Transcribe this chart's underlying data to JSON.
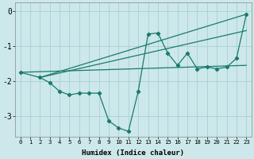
{
  "background_color": "#cce8ea",
  "grid_color": "#aad0d3",
  "line_color": "#1a7a6e",
  "xlim": [
    -0.5,
    23.5
  ],
  "ylim": [
    -3.6,
    0.25
  ],
  "xlabel": "Humidex (Indice chaleur)",
  "yticks": [
    0,
    -1,
    -2,
    -3
  ],
  "xtick_labels": [
    "0",
    "1",
    "2",
    "3",
    "4",
    "5",
    "6",
    "7",
    "8",
    "9",
    "10",
    "11",
    "12",
    "13",
    "14",
    "15",
    "16",
    "17",
    "18",
    "19",
    "20",
    "21",
    "22",
    "23"
  ],
  "main_x": [
    0,
    2,
    3,
    4,
    5,
    6,
    7,
    8,
    9,
    10,
    11,
    12,
    13,
    14,
    15,
    16,
    17,
    18,
    19,
    20,
    21,
    22,
    23
  ],
  "main_y": [
    -1.75,
    -1.9,
    -2.05,
    -2.3,
    -2.4,
    -2.35,
    -2.35,
    -2.35,
    -3.15,
    -3.35,
    -3.45,
    -2.3,
    -0.65,
    -0.62,
    -1.2,
    -1.55,
    -1.2,
    -1.65,
    -1.6,
    -1.65,
    -1.6,
    -1.35,
    -0.08
  ],
  "line1_x": [
    2,
    23
  ],
  "line1_y": [
    -1.9,
    -0.08
  ],
  "line2_x": [
    2,
    23
  ],
  "line2_y": [
    -1.9,
    -0.55
  ],
  "line3_x": [
    0,
    23
  ],
  "line3_y": [
    -1.75,
    -1.55
  ]
}
